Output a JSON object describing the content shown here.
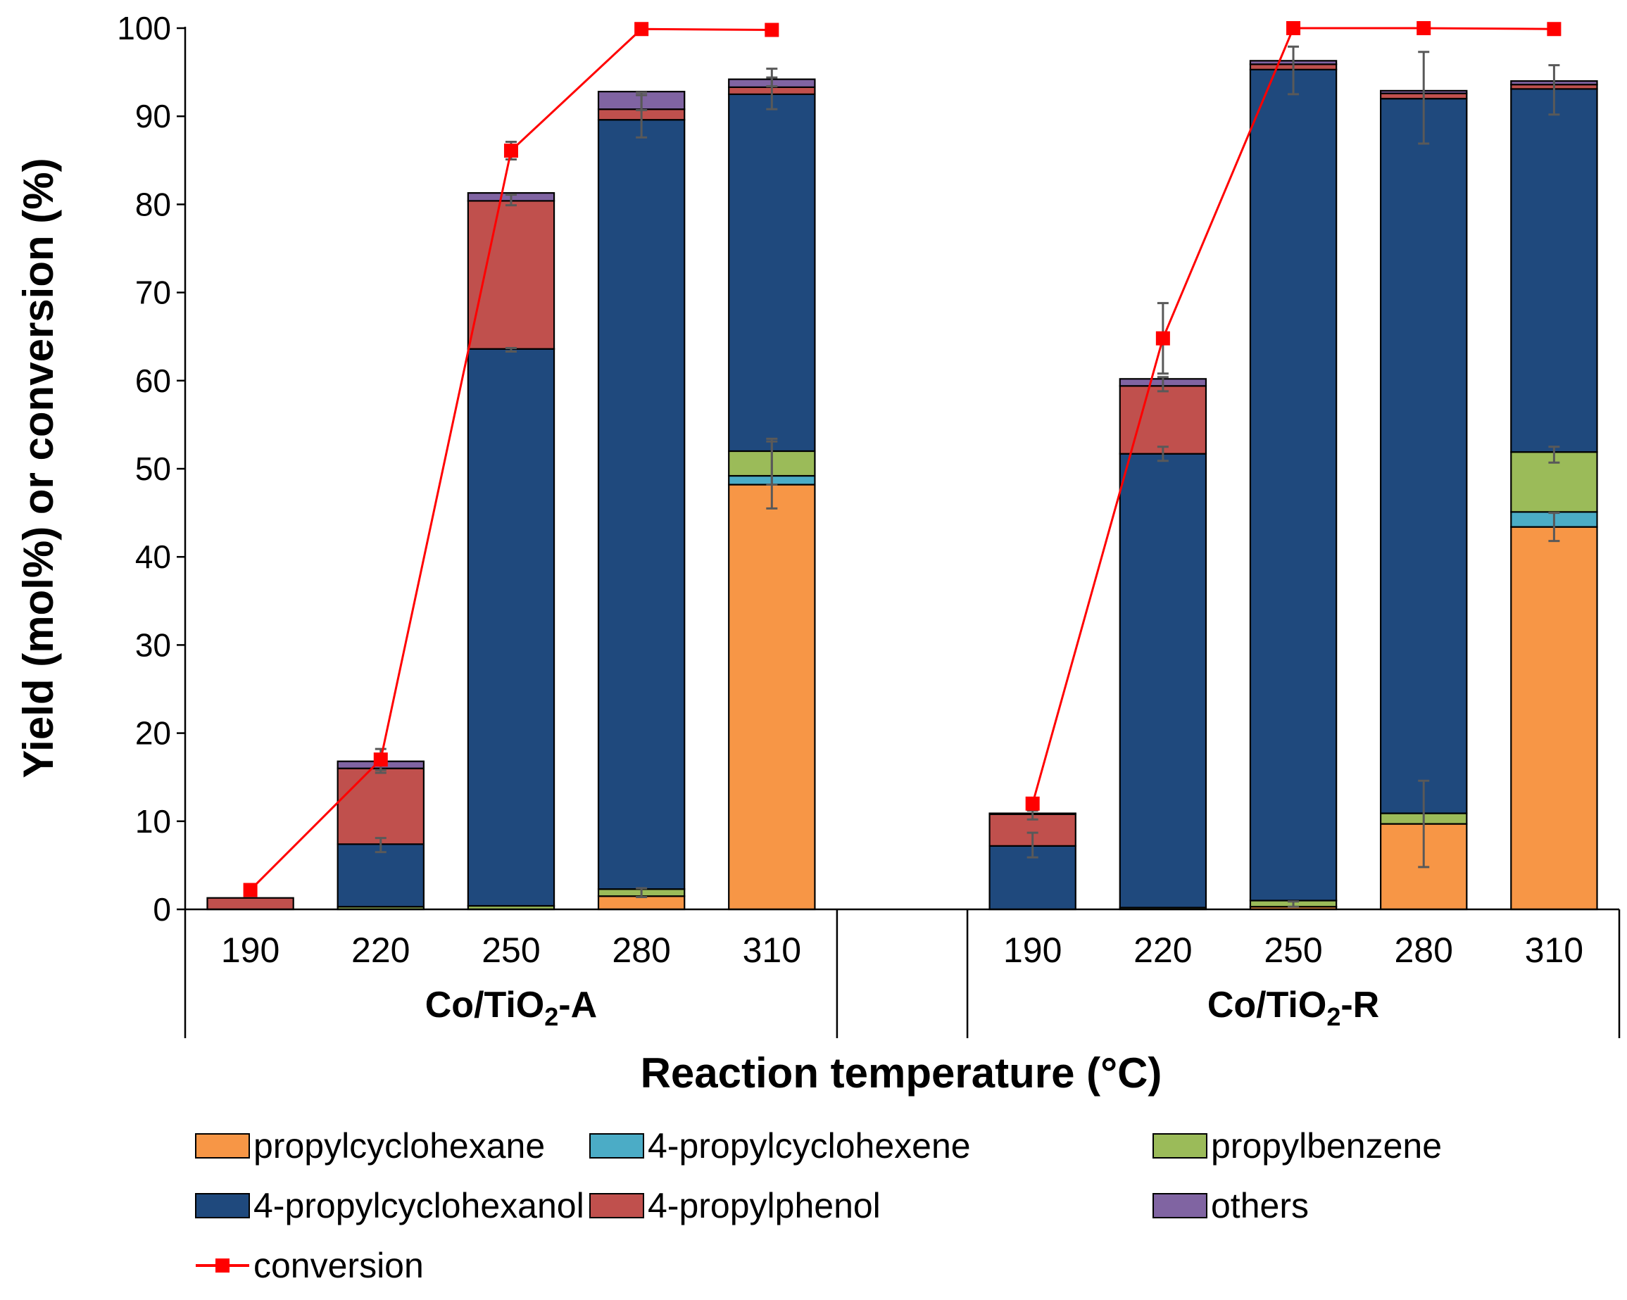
{
  "chart_data": {
    "type": "bar",
    "stacked": true,
    "ylabel": "Yield (mol%) or conversion (%)",
    "xlabel": "Reaction temperature (°C)",
    "ylim": [
      0,
      100
    ],
    "yticks": [
      0,
      10,
      20,
      30,
      40,
      50,
      60,
      70,
      80,
      90,
      100
    ],
    "grid": false,
    "legend_position": "bottom",
    "groups": [
      {
        "name_main": "Co/TiO",
        "name_sub": "2",
        "name_suffix": "-A",
        "categories": [
          "190",
          "220",
          "250",
          "280",
          "310"
        ]
      },
      {
        "name_main": "Co/TiO",
        "name_sub": "2",
        "name_suffix": "-R",
        "categories": [
          "190",
          "220",
          "250",
          "280",
          "310"
        ]
      }
    ],
    "series": [
      {
        "name": "propylcyclohexane",
        "color": "#F79646",
        "values": [
          [
            0,
            0,
            0,
            1.5,
            48.2
          ],
          [
            0,
            0,
            0.3,
            9.7,
            43.4
          ]
        ]
      },
      {
        "name": "4-propylcyclohexene",
        "color": "#4BACC6",
        "values": [
          [
            0,
            0,
            0,
            0,
            1.0
          ],
          [
            0,
            0,
            0,
            0,
            1.7
          ]
        ]
      },
      {
        "name": "propylbenzene",
        "color": "#9BBB59",
        "values": [
          [
            0,
            0.3,
            0.4,
            0.8,
            2.8
          ],
          [
            0,
            0.2,
            0.7,
            1.2,
            6.8
          ]
        ]
      },
      {
        "name": "4-propylcyclohexanol",
        "color": "#1F497D",
        "values": [
          [
            0,
            7.1,
            63.2,
            87.3,
            40.5
          ],
          [
            7.2,
            51.5,
            94.3,
            81.1,
            41.2
          ]
        ]
      },
      {
        "name": "4-propylphenol",
        "color": "#C0504D",
        "values": [
          [
            1.3,
            8.6,
            16.8,
            1.2,
            0.8
          ],
          [
            3.6,
            7.7,
            0.6,
            0.6,
            0.5
          ]
        ]
      },
      {
        "name": "others",
        "color": "#8064A2",
        "values": [
          [
            0,
            0.8,
            0.9,
            2.0,
            0.9
          ],
          [
            0.1,
            0.8,
            0.4,
            0.3,
            0.4
          ]
        ]
      }
    ],
    "conversion": {
      "name": "conversion",
      "color": "#FF0000",
      "values": [
        [
          2.2,
          17.0,
          86.1,
          99.9,
          99.8
        ],
        [
          12.0,
          64.8,
          100,
          100,
          99.9
        ]
      ]
    },
    "error_bars": {
      "color": "#595959",
      "points": [
        {
          "g": 0,
          "i": 1,
          "y": 7.3,
          "e": 0.8
        },
        {
          "g": 0,
          "i": 1,
          "y": 16.1,
          "e": 0.6
        },
        {
          "g": 0,
          "i": 1,
          "y": 17.0,
          "e": 1.2
        },
        {
          "g": 0,
          "i": 2,
          "y": 63.5,
          "e": 0.2
        },
        {
          "g": 0,
          "i": 2,
          "y": 80.5,
          "e": 0.6
        },
        {
          "g": 0,
          "i": 2,
          "y": 86.1,
          "e": 1.0
        },
        {
          "g": 0,
          "i": 3,
          "y": 1.9,
          "e": 0.5
        },
        {
          "g": 0,
          "i": 3,
          "y": 90.0,
          "e": 2.4
        },
        {
          "g": 0,
          "i": 3,
          "y": 91.7,
          "e": 1.0
        },
        {
          "g": 0,
          "i": 4,
          "y": 49.3,
          "e": 3.8
        },
        {
          "g": 0,
          "i": 4,
          "y": 50.8,
          "e": 2.6
        },
        {
          "g": 0,
          "i": 4,
          "y": 93.1,
          "e": 2.3
        },
        {
          "g": 0,
          "i": 4,
          "y": 93.9,
          "e": 0.5
        },
        {
          "g": 1,
          "i": 0,
          "y": 7.3,
          "e": 1.4
        },
        {
          "g": 1,
          "i": 0,
          "y": 10.7,
          "e": 0.5
        },
        {
          "g": 1,
          "i": 1,
          "y": 51.7,
          "e": 0.8
        },
        {
          "g": 1,
          "i": 1,
          "y": 59.6,
          "e": 0.8
        },
        {
          "g": 1,
          "i": 1,
          "y": 64.8,
          "e": 4.0
        },
        {
          "g": 1,
          "i": 2,
          "y": 0.6,
          "e": 0.3
        },
        {
          "g": 1,
          "i": 2,
          "y": 95.2,
          "e": 2.7
        },
        {
          "g": 1,
          "i": 3,
          "y": 9.7,
          "e": 4.9
        },
        {
          "g": 1,
          "i": 3,
          "y": 92.1,
          "e": 5.2
        },
        {
          "g": 1,
          "i": 4,
          "y": 43.4,
          "e": 1.6
        },
        {
          "g": 1,
          "i": 4,
          "y": 51.6,
          "e": 0.9
        },
        {
          "g": 1,
          "i": 4,
          "y": 93.0,
          "e": 2.8
        }
      ]
    }
  }
}
